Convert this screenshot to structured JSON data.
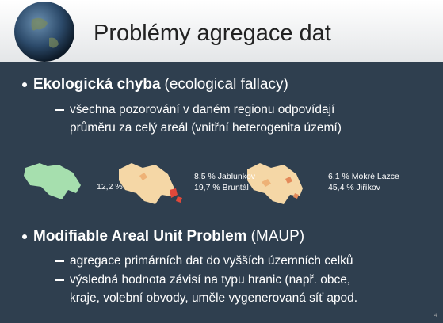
{
  "header": {
    "title": "Problémy agregace dat"
  },
  "bullets": [
    {
      "bold": "Ekologická chyba",
      "rest": "(ecological fallacy)",
      "subs": [
        [
          "všechna pozorování v daném regionu odpovídají",
          "průměru za celý areál (vnitřní heterogenita území)"
        ]
      ]
    },
    {
      "bold": "Modifiable Areal Unit Problem",
      "rest": "(MAUP)",
      "subs": [
        [
          "agregace primárních dat do vyšších územních celků"
        ],
        [
          "výsledná hodnota závisí na typu hranic (např. obce,",
          "kraje, volební obvody, uměle vygenerovaná síť apod."
        ]
      ]
    }
  ],
  "maps": [
    {
      "labels": [
        "12,2 %"
      ]
    },
    {
      "labels": [
        "8,5 % Jablunkov",
        "19,7 % Bruntál"
      ]
    },
    {
      "labels": [
        "6,1 % Mokré Lazce",
        "45,4 % Jiříkov"
      ]
    }
  ],
  "page_number": "4"
}
